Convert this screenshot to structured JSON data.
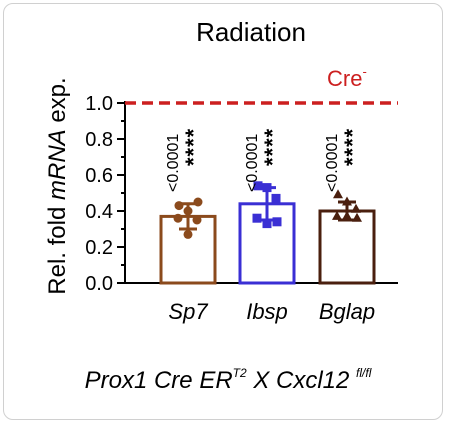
{
  "chart_data": {
    "type": "bar",
    "title": "Radiation",
    "ylabel_parts": [
      "Rel. fold ",
      "mRNA",
      " exp."
    ],
    "ylim": [
      0,
      1.0
    ],
    "yticks": [
      "0.0",
      "0.2",
      "0.4",
      "0.6",
      "0.8",
      "1.0"
    ],
    "categories": [
      "Sp7",
      "Ibsp",
      "Bglap"
    ],
    "values": [
      0.37,
      0.44,
      0.4
    ],
    "errors": [
      0.07,
      0.09,
      0.05
    ],
    "points": [
      [
        0.43,
        0.4,
        0.35,
        0.36,
        0.27,
        0.45
      ],
      [
        0.54,
        0.53,
        0.47,
        0.36,
        0.33,
        0.34
      ],
      [
        0.49,
        0.45,
        0.41,
        0.37,
        0.37,
        0.36
      ]
    ],
    "p_values": [
      "<0.0001",
      "<0.0001",
      "<0.0001"
    ],
    "significance": [
      "****",
      "****",
      "****"
    ],
    "reference": {
      "label": "Cre",
      "label_sup": "-",
      "value": 1.0
    },
    "colors": {
      "Sp7": "#8b4a1c",
      "Ibsp": "#3a2fd4",
      "Bglap": "#4a1f0e",
      "reference": "#cc1f1f"
    },
    "footer": {
      "parts": [
        "Prox1 Cre ER",
        "T2",
        " X Cxcl12 ",
        "fl/fl"
      ]
    },
    "grid": false
  }
}
